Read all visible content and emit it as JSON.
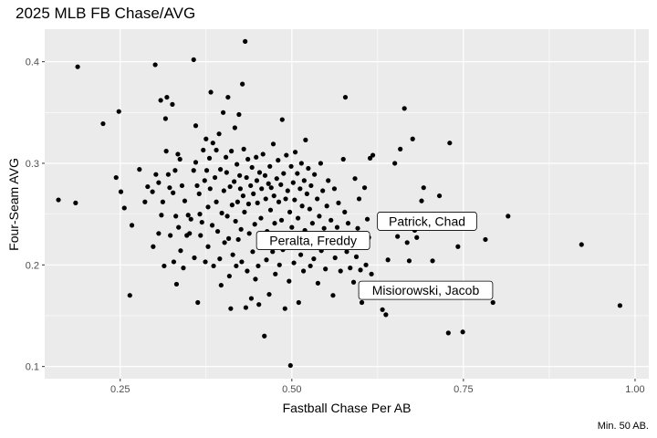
{
  "chart_data": {
    "type": "scatter",
    "title": "2025 MLB FB Chase/AVG",
    "xlabel": "Fastball Chase Per AB",
    "ylabel": "Four-Seam AVG",
    "caption": "Min. 50 AB.",
    "xlim": [
      0.14,
      1.02
    ],
    "ylim": [
      0.088,
      0.432
    ],
    "x_ticks": [
      0.25,
      0.5,
      0.75,
      1.0
    ],
    "x_tick_labels": [
      "0.25",
      "0.50",
      "0.75",
      "1.00"
    ],
    "y_ticks": [
      0.1,
      0.2,
      0.3,
      0.4
    ],
    "y_tick_labels": [
      "0.1",
      "0.2",
      "0.3",
      "0.4"
    ],
    "grid": true,
    "point_color": "#000000",
    "panel_color": "#ebebeb",
    "labels": [
      {
        "text": "Patrick, Chad",
        "x": 0.697,
        "y": 0.243
      },
      {
        "text": "Peralta, Freddy",
        "x": 0.531,
        "y": 0.224
      },
      {
        "text": "Misiorowski, Jacob",
        "x": 0.695,
        "y": 0.175
      }
    ],
    "points": [
      [
        0.16,
        0.264
      ],
      [
        0.185,
        0.261
      ],
      [
        0.188,
        0.395
      ],
      [
        0.225,
        0.339
      ],
      [
        0.244,
        0.286
      ],
      [
        0.248,
        0.351
      ],
      [
        0.251,
        0.272
      ],
      [
        0.256,
        0.256
      ],
      [
        0.264,
        0.17
      ],
      [
        0.267,
        0.239
      ],
      [
        0.278,
        0.294
      ],
      [
        0.286,
        0.262
      ],
      [
        0.29,
        0.277
      ],
      [
        0.297,
        0.272
      ],
      [
        0.298,
        0.218
      ],
      [
        0.301,
        0.397
      ],
      [
        0.302,
        0.289
      ],
      [
        0.306,
        0.281
      ],
      [
        0.306,
        0.231
      ],
      [
        0.309,
        0.362
      ],
      [
        0.31,
        0.249
      ],
      [
        0.312,
        0.262
      ],
      [
        0.314,
        0.199
      ],
      [
        0.316,
        0.344
      ],
      [
        0.317,
        0.312
      ],
      [
        0.318,
        0.365
      ],
      [
        0.32,
        0.289
      ],
      [
        0.322,
        0.276
      ],
      [
        0.323,
        0.229
      ],
      [
        0.326,
        0.358
      ],
      [
        0.327,
        0.271
      ],
      [
        0.328,
        0.203
      ],
      [
        0.33,
        0.293
      ],
      [
        0.331,
        0.248
      ],
      [
        0.332,
        0.181
      ],
      [
        0.334,
        0.309
      ],
      [
        0.335,
        0.237
      ],
      [
        0.337,
        0.304
      ],
      [
        0.338,
        0.214
      ],
      [
        0.34,
        0.278
      ],
      [
        0.342,
        0.197
      ],
      [
        0.344,
        0.263
      ],
      [
        0.347,
        0.229
      ],
      [
        0.349,
        0.249
      ],
      [
        0.351,
        0.231
      ],
      [
        0.353,
        0.245
      ],
      [
        0.357,
        0.293
      ],
      [
        0.357,
        0.402
      ],
      [
        0.358,
        0.207
      ],
      [
        0.36,
        0.337
      ],
      [
        0.36,
        0.301
      ],
      [
        0.362,
        0.278
      ],
      [
        0.363,
        0.163
      ],
      [
        0.365,
        0.27
      ],
      [
        0.366,
        0.25
      ],
      [
        0.367,
        0.229
      ],
      [
        0.369,
        0.242
      ],
      [
        0.371,
        0.313
      ],
      [
        0.373,
        0.283
      ],
      [
        0.374,
        0.203
      ],
      [
        0.375,
        0.324
      ],
      [
        0.376,
        0.293
      ],
      [
        0.378,
        0.257
      ],
      [
        0.378,
        0.218
      ],
      [
        0.38,
        0.305
      ],
      [
        0.381,
        0.275
      ],
      [
        0.382,
        0.37
      ],
      [
        0.384,
        0.239
      ],
      [
        0.385,
        0.32
      ],
      [
        0.386,
        0.199
      ],
      [
        0.388,
        0.286
      ],
      [
        0.39,
        0.313
      ],
      [
        0.39,
        0.262
      ],
      [
        0.392,
        0.233
      ],
      [
        0.394,
        0.329
      ],
      [
        0.395,
        0.206
      ],
      [
        0.396,
        0.294
      ],
      [
        0.397,
        0.18
      ],
      [
        0.398,
        0.251
      ],
      [
        0.4,
        0.35
      ],
      [
        0.401,
        0.273
      ],
      [
        0.402,
        0.222
      ],
      [
        0.404,
        0.306
      ],
      [
        0.405,
        0.291
      ],
      [
        0.406,
        0.248
      ],
      [
        0.407,
        0.365
      ],
      [
        0.408,
        0.226
      ],
      [
        0.409,
        0.189
      ],
      [
        0.41,
        0.277
      ],
      [
        0.411,
        0.157
      ],
      [
        0.412,
        0.312
      ],
      [
        0.413,
        0.259
      ],
      [
        0.414,
        0.21
      ],
      [
        0.416,
        0.282
      ],
      [
        0.417,
        0.335
      ],
      [
        0.418,
        0.243
      ],
      [
        0.419,
        0.199
      ],
      [
        0.42,
        0.299
      ],
      [
        0.421,
        0.262
      ],
      [
        0.422,
        0.225
      ],
      [
        0.423,
        0.348
      ],
      [
        0.424,
        0.288
      ],
      [
        0.425,
        0.275
      ],
      [
        0.426,
        0.235
      ],
      [
        0.427,
        0.203
      ],
      [
        0.428,
        0.378
      ],
      [
        0.429,
        0.268
      ],
      [
        0.43,
        0.314
      ],
      [
        0.431,
        0.252
      ],
      [
        0.432,
        0.42
      ],
      [
        0.433,
        0.158
      ],
      [
        0.434,
        0.286
      ],
      [
        0.435,
        0.194
      ],
      [
        0.436,
        0.304
      ],
      [
        0.437,
        0.26
      ],
      [
        0.438,
        0.231
      ],
      [
        0.44,
        0.278
      ],
      [
        0.441,
        0.167
      ],
      [
        0.442,
        0.296
      ],
      [
        0.443,
        0.213
      ],
      [
        0.444,
        0.27
      ],
      [
        0.446,
        0.24
      ],
      [
        0.447,
        0.186
      ],
      [
        0.448,
        0.306
      ],
      [
        0.449,
        0.283
      ],
      [
        0.45,
        0.261
      ],
      [
        0.451,
        0.199
      ],
      [
        0.452,
        0.161
      ],
      [
        0.453,
        0.291
      ],
      [
        0.455,
        0.246
      ],
      [
        0.456,
        0.275
      ],
      [
        0.457,
        0.219
      ],
      [
        0.458,
        0.309
      ],
      [
        0.46,
        0.13
      ],
      [
        0.461,
        0.288
      ],
      [
        0.462,
        0.265
      ],
      [
        0.463,
        0.205
      ],
      [
        0.464,
        0.233
      ],
      [
        0.466,
        0.28
      ],
      [
        0.467,
        0.171
      ],
      [
        0.468,
        0.297
      ],
      [
        0.469,
        0.254
      ],
      [
        0.47,
        0.276
      ],
      [
        0.472,
        0.213
      ],
      [
        0.473,
        0.319
      ],
      [
        0.474,
        0.268
      ],
      [
        0.475,
        0.241
      ],
      [
        0.476,
        0.191
      ],
      [
        0.478,
        0.285
      ],
      [
        0.479,
        0.226
      ],
      [
        0.48,
        0.303
      ],
      [
        0.481,
        0.262
      ],
      [
        0.482,
        0.2
      ],
      [
        0.484,
        0.279
      ],
      [
        0.485,
        0.244
      ],
      [
        0.486,
        0.343
      ],
      [
        0.487,
        0.215
      ],
      [
        0.488,
        0.29
      ],
      [
        0.49,
        0.157
      ],
      [
        0.491,
        0.265
      ],
      [
        0.492,
        0.308
      ],
      [
        0.493,
        0.226
      ],
      [
        0.494,
        0.273
      ],
      [
        0.496,
        0.184
      ],
      [
        0.497,
        0.252
      ],
      [
        0.498,
        0.101
      ],
      [
        0.499,
        0.297
      ],
      [
        0.5,
        0.237
      ],
      [
        0.502,
        0.281
      ],
      [
        0.503,
        0.202
      ],
      [
        0.504,
        0.264
      ],
      [
        0.505,
        0.311
      ],
      [
        0.507,
        0.22
      ],
      [
        0.508,
        0.29
      ],
      [
        0.509,
        0.246
      ],
      [
        0.51,
        0.163
      ],
      [
        0.512,
        0.275
      ],
      [
        0.513,
        0.21
      ],
      [
        0.514,
        0.3
      ],
      [
        0.515,
        0.258
      ],
      [
        0.517,
        0.194
      ],
      [
        0.518,
        0.283
      ],
      [
        0.519,
        0.234
      ],
      [
        0.52,
        0.323
      ],
      [
        0.522,
        0.27
      ],
      [
        0.523,
        0.218
      ],
      [
        0.524,
        0.295
      ],
      [
        0.526,
        0.255
      ],
      [
        0.527,
        0.199
      ],
      [
        0.528,
        0.278
      ],
      [
        0.53,
        0.241
      ],
      [
        0.532,
        0.206
      ],
      [
        0.533,
        0.289
      ],
      [
        0.535,
        0.227
      ],
      [
        0.537,
        0.265
      ],
      [
        0.538,
        0.182
      ],
      [
        0.54,
        0.248
      ],
      [
        0.542,
        0.3
      ],
      [
        0.543,
        0.214
      ],
      [
        0.545,
        0.273
      ],
      [
        0.547,
        0.236
      ],
      [
        0.549,
        0.196
      ],
      [
        0.551,
        0.258
      ],
      [
        0.553,
        0.283
      ],
      [
        0.555,
        0.221
      ],
      [
        0.557,
        0.244
      ],
      [
        0.56,
        0.17
      ],
      [
        0.562,
        0.275
      ],
      [
        0.563,
        0.207
      ],
      [
        0.566,
        0.237
      ],
      [
        0.568,
        0.261
      ],
      [
        0.571,
        0.194
      ],
      [
        0.573,
        0.229
      ],
      [
        0.575,
        0.304
      ],
      [
        0.577,
        0.252
      ],
      [
        0.578,
        0.365
      ],
      [
        0.58,
        0.213
      ],
      [
        0.582,
        0.241
      ],
      [
        0.585,
        0.197
      ],
      [
        0.588,
        0.224
      ],
      [
        0.59,
        0.183
      ],
      [
        0.592,
        0.285
      ],
      [
        0.594,
        0.208
      ],
      [
        0.596,
        0.236
      ],
      [
        0.598,
        0.265
      ],
      [
        0.6,
        0.195
      ],
      [
        0.602,
        0.163
      ],
      [
        0.604,
        0.217
      ],
      [
        0.606,
        0.276
      ],
      [
        0.608,
        0.2
      ],
      [
        0.61,
        0.245
      ],
      [
        0.612,
        0.227
      ],
      [
        0.614,
        0.305
      ],
      [
        0.616,
        0.191
      ],
      [
        0.618,
        0.308
      ],
      [
        0.62,
        0.178
      ],
      [
        0.632,
        0.156
      ],
      [
        0.637,
        0.151
      ],
      [
        0.64,
        0.205
      ],
      [
        0.648,
        0.238
      ],
      [
        0.65,
        0.3
      ],
      [
        0.654,
        0.228
      ],
      [
        0.658,
        0.314
      ],
      [
        0.664,
        0.354
      ],
      [
        0.668,
        0.222
      ],
      [
        0.671,
        0.204
      ],
      [
        0.674,
        0.249
      ],
      [
        0.676,
        0.324
      ],
      [
        0.679,
        0.234
      ],
      [
        0.682,
        0.227
      ],
      [
        0.689,
        0.263
      ],
      [
        0.692,
        0.276
      ],
      [
        0.705,
        0.204
      ],
      [
        0.715,
        0.268
      ],
      [
        0.73,
        0.32
      ],
      [
        0.728,
        0.133
      ],
      [
        0.742,
        0.218
      ],
      [
        0.749,
        0.134
      ],
      [
        0.782,
        0.225
      ],
      [
        0.793,
        0.163
      ],
      [
        0.815,
        0.248
      ],
      [
        0.922,
        0.22
      ],
      [
        0.978,
        0.16
      ]
    ]
  }
}
